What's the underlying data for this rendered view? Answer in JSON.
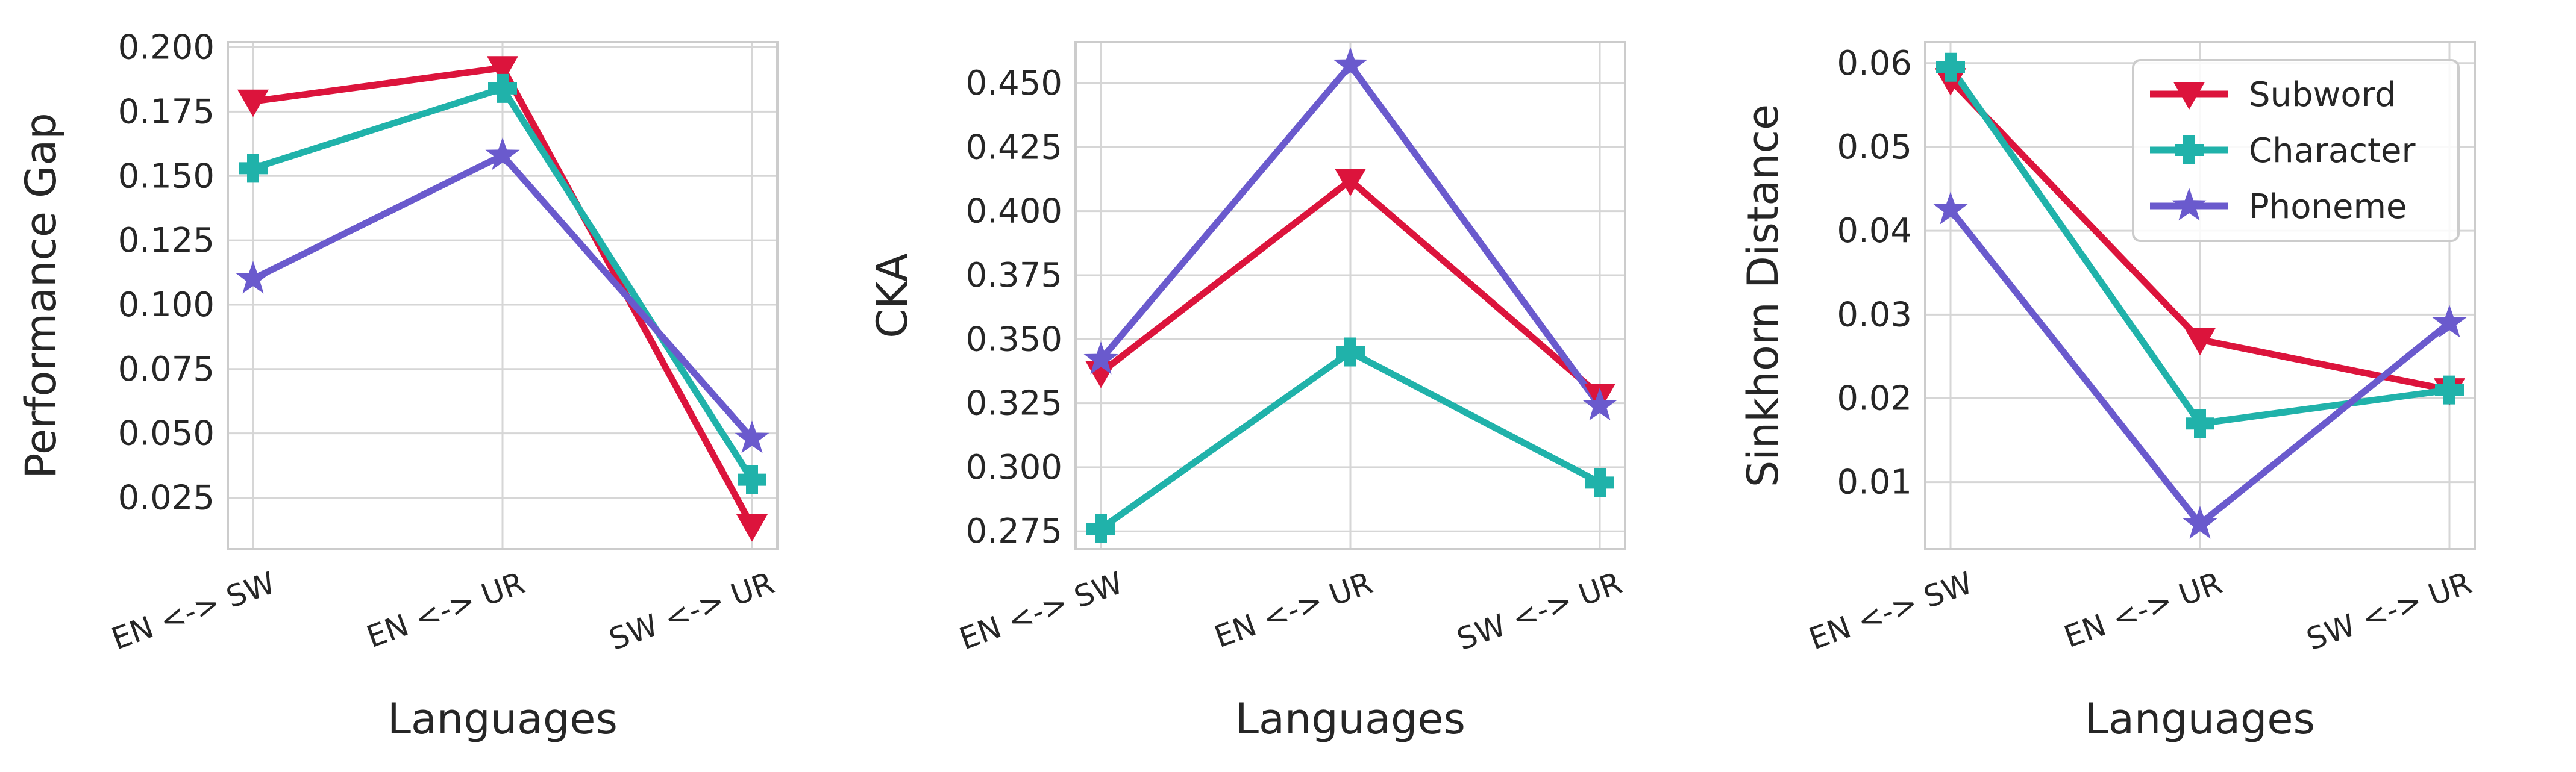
{
  "colors": {
    "subword": "#dc143c",
    "character": "#20b2aa",
    "phoneme": "#6a5acd"
  },
  "legend": [
    {
      "label": "Subword",
      "marker": "triangle-down",
      "color": "#dc143c"
    },
    {
      "label": "Character",
      "marker": "plus",
      "color": "#20b2aa"
    },
    {
      "label": "Phoneme",
      "marker": "star",
      "color": "#6a5acd"
    }
  ],
  "chart_data": [
    {
      "type": "line",
      "categories": [
        "EN <-> SW",
        "EN <-> UR",
        "SW <-> UR"
      ],
      "xlabel": "Languages",
      "ylabel": "Performance Gap",
      "ylim": [
        0.005,
        0.202
      ],
      "yticks": [
        0.025,
        0.05,
        0.075,
        0.1,
        0.125,
        0.15,
        0.175,
        0.2
      ],
      "ytick_labels": [
        "0.025",
        "0.050",
        "0.075",
        "0.100",
        "0.125",
        "0.150",
        "0.175",
        "0.200"
      ],
      "grid": true,
      "series": [
        {
          "name": "Subword",
          "values": [
            0.179,
            0.192,
            0.014
          ]
        },
        {
          "name": "Character",
          "values": [
            0.153,
            0.184,
            0.032
          ]
        },
        {
          "name": "Phoneme",
          "values": [
            0.11,
            0.158,
            0.048
          ]
        }
      ]
    },
    {
      "type": "line",
      "categories": [
        "EN <-> SW",
        "EN <-> UR",
        "SW <-> UR"
      ],
      "xlabel": "Languages",
      "ylabel": "CKA",
      "ylim": [
        0.268,
        0.466
      ],
      "yticks": [
        0.275,
        0.3,
        0.325,
        0.35,
        0.375,
        0.4,
        0.425,
        0.45
      ],
      "ytick_labels": [
        "0.275",
        "0.300",
        "0.325",
        "0.350",
        "0.375",
        "0.400",
        "0.425",
        "0.450"
      ],
      "grid": true,
      "series": [
        {
          "name": "Subword",
          "values": [
            0.337,
            0.412,
            0.328
          ]
        },
        {
          "name": "Character",
          "values": [
            0.276,
            0.345,
            0.294
          ]
        },
        {
          "name": "Phoneme",
          "values": [
            0.342,
            0.457,
            0.324
          ]
        }
      ]
    },
    {
      "type": "line",
      "categories": [
        "EN <-> SW",
        "EN <-> UR",
        "SW <-> UR"
      ],
      "xlabel": "Languages",
      "ylabel": "Sinkhorn Distance",
      "ylim": [
        0.002,
        0.0625
      ],
      "yticks": [
        0.01,
        0.02,
        0.03,
        0.04,
        0.05,
        0.06
      ],
      "ytick_labels": [
        "0.01",
        "0.02",
        "0.03",
        "0.04",
        "0.05",
        "0.06"
      ],
      "grid": true,
      "legend_position": "top-right",
      "series": [
        {
          "name": "Subword",
          "values": [
            0.058,
            0.027,
            0.021
          ]
        },
        {
          "name": "Character",
          "values": [
            0.0595,
            0.017,
            0.021
          ]
        },
        {
          "name": "Phoneme",
          "values": [
            0.0425,
            0.005,
            0.029
          ]
        }
      ]
    }
  ]
}
